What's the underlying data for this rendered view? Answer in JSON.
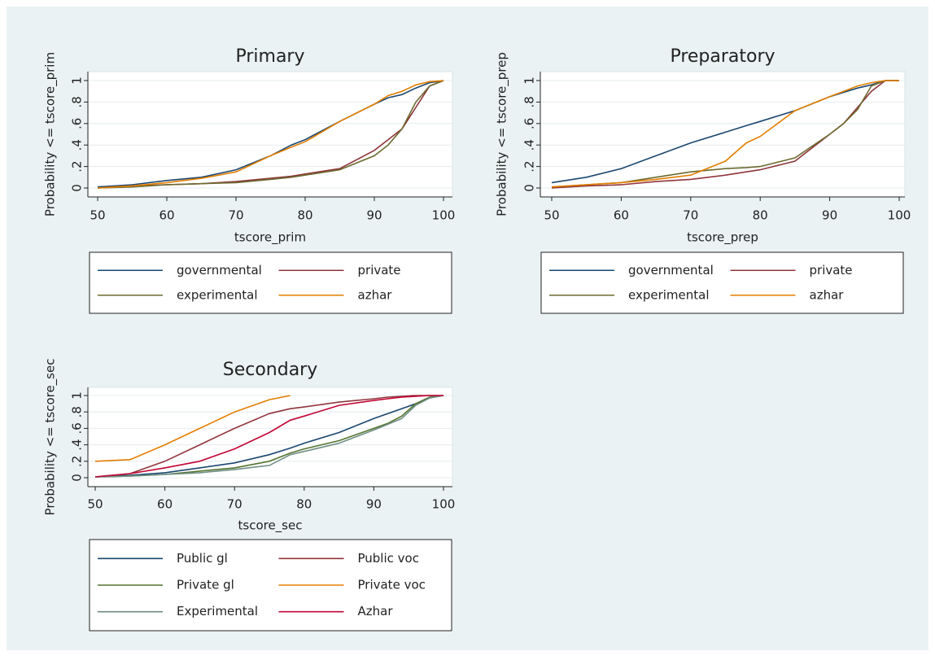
{
  "chart_data": [
    {
      "type": "line",
      "title": "Primary",
      "xlabel": "tscore_prim",
      "ylabel": "Probability <= tscore_prim",
      "x": [
        50,
        55,
        60,
        65,
        70,
        75,
        78,
        80,
        85,
        90,
        92,
        94,
        96,
        98,
        100
      ],
      "xlim": [
        50,
        100
      ],
      "xticks": [
        50,
        60,
        70,
        80,
        90,
        100
      ],
      "ylim": [
        0,
        1
      ],
      "yticks": [
        0,
        {
          "value": 0.2,
          "label": ".2"
        },
        {
          "value": 0.4,
          "label": ".4"
        },
        {
          "value": 0.6,
          "label": ".6"
        },
        {
          "value": 0.8,
          "label": ".8"
        },
        1
      ],
      "grid": true,
      "series": [
        {
          "name": "governmental",
          "color": "#1a476f",
          "values": [
            0.01,
            0.03,
            0.07,
            0.1,
            0.17,
            0.3,
            0.4,
            0.45,
            0.62,
            0.78,
            0.84,
            0.87,
            0.93,
            0.98,
            1
          ]
        },
        {
          "name": "private",
          "color": "#90353b",
          "values": [
            0,
            0.02,
            0.03,
            0.04,
            0.06,
            0.09,
            0.11,
            0.13,
            0.18,
            0.35,
            0.45,
            0.55,
            0.75,
            0.95,
            1
          ]
        },
        {
          "name": "experimental",
          "color": "#6b6a2f",
          "values": [
            0,
            0.01,
            0.03,
            0.04,
            0.05,
            0.08,
            0.1,
            0.12,
            0.17,
            0.3,
            0.4,
            0.55,
            0.8,
            0.95,
            1
          ]
        },
        {
          "name": "azhar",
          "color": "#e37e00",
          "values": [
            0,
            0.02,
            0.05,
            0.09,
            0.15,
            0.3,
            0.38,
            0.43,
            0.62,
            0.78,
            0.86,
            0.9,
            0.96,
            0.99,
            1
          ]
        }
      ]
    },
    {
      "type": "line",
      "title": "Preparatory",
      "xlabel": "tscore_prep",
      "ylabel": "Probability <= tscore_prep",
      "x": [
        50,
        55,
        60,
        65,
        70,
        75,
        78,
        80,
        85,
        90,
        92,
        94,
        96,
        98,
        100
      ],
      "xlim": [
        50,
        100
      ],
      "xticks": [
        50,
        60,
        70,
        80,
        90,
        100
      ],
      "ylim": [
        0,
        1
      ],
      "yticks": [
        0,
        {
          "value": 0.2,
          "label": ".2"
        },
        {
          "value": 0.4,
          "label": ".4"
        },
        {
          "value": 0.6,
          "label": ".6"
        },
        {
          "value": 0.8,
          "label": ".8"
        },
        1
      ],
      "grid": true,
      "series": [
        {
          "name": "governmental",
          "color": "#1a476f",
          "values": [
            0.05,
            0.1,
            0.18,
            0.3,
            0.42,
            0.52,
            0.58,
            0.62,
            0.72,
            0.85,
            0.89,
            0.93,
            0.96,
            1,
            1
          ]
        },
        {
          "name": "private",
          "color": "#90353b",
          "values": [
            0,
            0.02,
            0.03,
            0.06,
            0.08,
            0.12,
            0.15,
            0.17,
            0.25,
            0.5,
            0.6,
            0.75,
            0.9,
            1,
            1
          ]
        },
        {
          "name": "experimental",
          "color": "#6b6a2f",
          "values": [
            0.01,
            0.03,
            0.05,
            0.1,
            0.15,
            0.18,
            0.19,
            0.2,
            0.28,
            0.5,
            0.6,
            0.73,
            0.95,
            1,
            1
          ]
        },
        {
          "name": "azhar",
          "color": "#e37e00",
          "values": [
            0.01,
            0.03,
            0.05,
            0.08,
            0.12,
            0.25,
            0.42,
            0.48,
            0.72,
            0.85,
            0.9,
            0.95,
            0.98,
            1,
            1
          ]
        }
      ]
    },
    {
      "type": "line",
      "title": "Secondary",
      "xlabel": "tscore_sec",
      "ylabel": "Probability <= tscore_sec",
      "x": [
        50,
        55,
        60,
        65,
        70,
        75,
        78,
        80,
        85,
        90,
        92,
        94,
        96,
        98,
        100
      ],
      "xlim": [
        50,
        100
      ],
      "xticks": [
        50,
        60,
        70,
        80,
        90,
        100
      ],
      "ylim": [
        0,
        1
      ],
      "yticks": [
        0,
        {
          "value": 0.2,
          "label": ".2"
        },
        {
          "value": 0.4,
          "label": ".4"
        },
        {
          "value": 0.6,
          "label": ".6"
        },
        {
          "value": 0.8,
          "label": ".8"
        },
        1
      ],
      "grid": true,
      "series": [
        {
          "name": "Public gl",
          "color": "#1a476f",
          "values": [
            0.01,
            0.03,
            0.06,
            0.12,
            0.18,
            0.28,
            0.36,
            0.42,
            0.55,
            0.72,
            0.78,
            0.84,
            0.9,
            0.97,
            1
          ]
        },
        {
          "name": "Public voc",
          "color": "#90353b",
          "values": [
            0.01,
            0.05,
            0.2,
            0.4,
            0.6,
            0.78,
            0.84,
            0.86,
            0.92,
            0.96,
            0.98,
            0.99,
            1,
            1,
            1
          ]
        },
        {
          "name": "Private gl",
          "color": "#55752f",
          "values": [
            0.01,
            0.02,
            0.04,
            0.08,
            0.12,
            0.2,
            0.3,
            0.35,
            0.45,
            0.6,
            0.66,
            0.75,
            0.9,
            0.98,
            1
          ]
        },
        {
          "name": "Private voc",
          "color": "#e37e00",
          "values": [
            0.2,
            0.22,
            0.4,
            0.6,
            0.8,
            0.95,
            1,
            null,
            null,
            null,
            null,
            null,
            null,
            null,
            null
          ]
        },
        {
          "name": "Experimental",
          "color": "#6e8e84",
          "values": [
            0.01,
            0.02,
            0.04,
            0.06,
            0.1,
            0.15,
            0.28,
            0.32,
            0.42,
            0.58,
            0.65,
            0.72,
            0.88,
            0.97,
            1
          ]
        },
        {
          "name": "Azhar",
          "color": "#c10534",
          "values": [
            0.01,
            0.05,
            0.12,
            0.2,
            0.35,
            0.55,
            0.7,
            0.75,
            0.88,
            0.94,
            0.96,
            0.98,
            0.99,
            1,
            1
          ]
        }
      ]
    }
  ]
}
